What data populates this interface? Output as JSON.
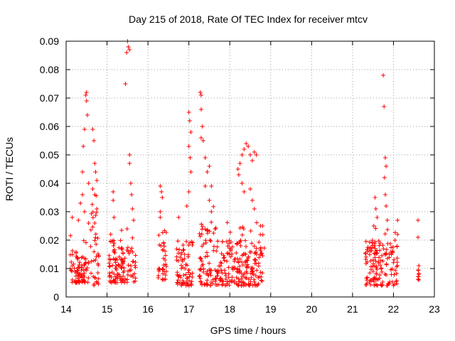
{
  "chart_data": {
    "type": "scatter",
    "title": "Day 215 of 2018, Rate Of TEC Index for receiver mtcv",
    "xlabel": "GPS time / hours",
    "ylabel": "ROTI / TECUs",
    "xlim": [
      14,
      23
    ],
    "ylim": [
      0,
      0.09
    ],
    "x_ticks": [
      "14",
      "15",
      "16",
      "17",
      "18",
      "19",
      "20",
      "21",
      "22",
      "23"
    ],
    "y_ticks": [
      "0",
      "0.01",
      "0.02",
      "0.03",
      "0.04",
      "0.05",
      "0.06",
      "0.07",
      "0.08",
      "0.09"
    ],
    "grid": true,
    "marker": "+",
    "color": "#ff0000",
    "clusters": [
      {
        "x_range": [
          14.1,
          14.55
        ],
        "typical": [
          0.005,
          0.017
        ],
        "peaks": [
          [
            14.15,
            0.028
          ],
          [
            14.3,
            0.027
          ],
          [
            14.35,
            0.033
          ],
          [
            14.4,
            0.044
          ],
          [
            14.42,
            0.053
          ],
          [
            14.45,
            0.059
          ],
          [
            14.48,
            0.071
          ],
          [
            14.5,
            0.072
          ],
          [
            14.5,
            0.069
          ],
          [
            14.52,
            0.064
          ],
          [
            14.55,
            0.04
          ],
          [
            14.55,
            0.026
          ],
          [
            14.45,
            0.03
          ],
          [
            14.4,
            0.036
          ]
        ]
      },
      {
        "x_range": [
          14.6,
          14.8
        ],
        "typical": [
          0.004,
          0.03
        ],
        "peaks": [
          [
            14.65,
            0.059
          ],
          [
            14.68,
            0.055
          ],
          [
            14.7,
            0.047
          ],
          [
            14.72,
            0.044
          ],
          [
            14.75,
            0.041
          ],
          [
            14.65,
            0.038
          ],
          [
            14.7,
            0.036
          ],
          [
            14.75,
            0.031
          ],
          [
            14.7,
            0.026
          ]
        ]
      },
      {
        "x_range": [
          15.05,
          15.7
        ],
        "typical": [
          0.005,
          0.02
        ],
        "peaks": [
          [
            15.15,
            0.037
          ],
          [
            15.15,
            0.034
          ],
          [
            15.17,
            0.028
          ],
          [
            15.45,
            0.075
          ],
          [
            15.48,
            0.086
          ],
          [
            15.5,
            0.09
          ],
          [
            15.52,
            0.088
          ],
          [
            15.55,
            0.087
          ],
          [
            15.55,
            0.05
          ],
          [
            15.55,
            0.047
          ],
          [
            15.58,
            0.04
          ],
          [
            15.6,
            0.036
          ],
          [
            15.62,
            0.031
          ],
          [
            15.65,
            0.027
          ]
        ]
      },
      {
        "x_range": [
          16.25,
          16.45
        ],
        "typical": [
          0.006,
          0.025
        ],
        "peaks": [
          [
            16.3,
            0.039
          ],
          [
            16.33,
            0.037
          ],
          [
            16.35,
            0.035
          ],
          [
            16.3,
            0.03
          ],
          [
            16.3,
            0.028
          ]
        ]
      },
      {
        "x_range": [
          16.7,
          17.1
        ],
        "typical": [
          0.004,
          0.02
        ],
        "peaks": [
          [
            16.75,
            0.028
          ],
          [
            16.95,
            0.032
          ],
          [
            17.0,
            0.065
          ],
          [
            17.02,
            0.062
          ],
          [
            17.05,
            0.058
          ],
          [
            17.0,
            0.053
          ],
          [
            17.03,
            0.049
          ],
          [
            17.05,
            0.044
          ],
          [
            17.0,
            0.037
          ]
        ]
      },
      {
        "x_range": [
          17.25,
          17.65
        ],
        "typical": [
          0.004,
          0.025
        ],
        "peaks": [
          [
            17.28,
            0.072
          ],
          [
            17.3,
            0.071
          ],
          [
            17.3,
            0.066
          ],
          [
            17.33,
            0.06
          ],
          [
            17.3,
            0.056
          ],
          [
            17.35,
            0.055
          ],
          [
            17.4,
            0.049
          ],
          [
            17.45,
            0.044
          ],
          [
            17.5,
            0.046
          ],
          [
            17.55,
            0.039
          ],
          [
            17.4,
            0.039
          ],
          [
            17.5,
            0.034
          ],
          [
            17.55,
            0.03
          ]
        ]
      },
      {
        "x_range": [
          17.65,
          18.85
        ],
        "typical": [
          0.004,
          0.02
        ],
        "peaks": [
          [
            18.2,
            0.045
          ],
          [
            18.22,
            0.043
          ],
          [
            18.25,
            0.047
          ],
          [
            18.3,
            0.05
          ],
          [
            18.35,
            0.052
          ],
          [
            18.4,
            0.054
          ],
          [
            18.45,
            0.053
          ],
          [
            18.5,
            0.05
          ],
          [
            18.55,
            0.048
          ],
          [
            18.6,
            0.051
          ],
          [
            18.65,
            0.05
          ],
          [
            18.3,
            0.04
          ],
          [
            18.35,
            0.037
          ],
          [
            18.5,
            0.038
          ],
          [
            18.55,
            0.034
          ],
          [
            18.6,
            0.031
          ],
          [
            18.75,
            0.025
          ],
          [
            18.8,
            0.025
          ]
        ]
      },
      {
        "x_range": [
          21.3,
          22.1
        ],
        "typical": [
          0.004,
          0.02
        ],
        "peaks": [
          [
            21.55,
            0.035
          ],
          [
            21.57,
            0.031
          ],
          [
            21.6,
            0.028
          ],
          [
            21.52,
            0.025
          ],
          [
            21.75,
            0.078
          ],
          [
            21.77,
            0.067
          ],
          [
            21.8,
            0.049
          ],
          [
            21.82,
            0.046
          ],
          [
            21.78,
            0.042
          ],
          [
            21.8,
            0.036
          ],
          [
            21.82,
            0.032
          ],
          [
            21.85,
            0.027
          ],
          [
            22.1,
            0.027
          ],
          [
            22.1,
            0.022
          ]
        ]
      },
      {
        "x_range": [
          22.6,
          22.62
        ],
        "typical": [
          0.005,
          0.011
        ],
        "peaks": [
          [
            22.6,
            0.027
          ],
          [
            22.6,
            0.021
          ],
          [
            22.62,
            0.011
          ],
          [
            22.62,
            0.008
          ],
          [
            22.62,
            0.006
          ]
        ]
      }
    ]
  }
}
